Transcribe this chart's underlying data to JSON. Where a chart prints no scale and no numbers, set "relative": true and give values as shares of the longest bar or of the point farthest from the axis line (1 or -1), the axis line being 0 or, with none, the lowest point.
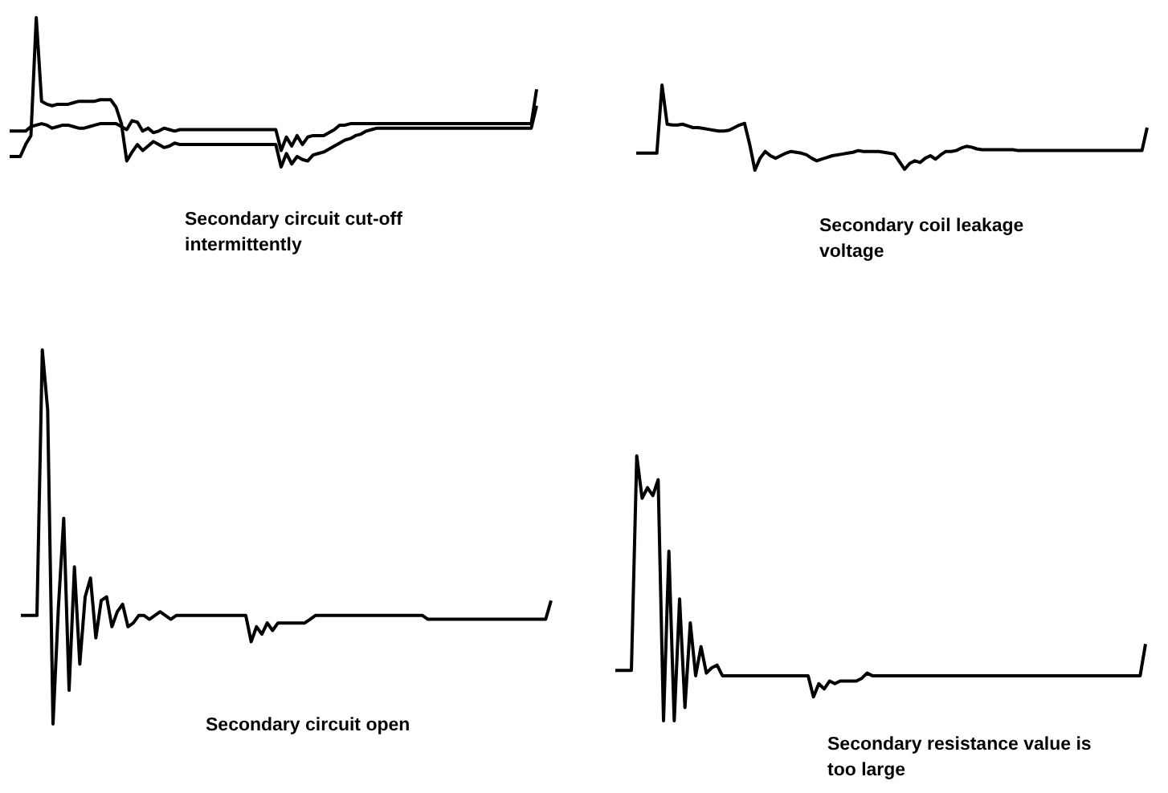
{
  "chart_data": [
    {
      "type": "line",
      "title": "Secondary circuit cut-off intermittently",
      "relative": true,
      "tick_labels": false,
      "categories": [
        null,
        null,
        null,
        null,
        null,
        null,
        null,
        null,
        null,
        null,
        null,
        null,
        null,
        null,
        null,
        null,
        null,
        null,
        null,
        null,
        null,
        null,
        null,
        null,
        null,
        null,
        null,
        null,
        null,
        null,
        null,
        null,
        null,
        null,
        null,
        null,
        null,
        null,
        null,
        null,
        null,
        null,
        null,
        null,
        null,
        null,
        null,
        null,
        null,
        null,
        null,
        null,
        null,
        null,
        null,
        null,
        null,
        null,
        null,
        null,
        null,
        null,
        null,
        null,
        null,
        null,
        null,
        null,
        null,
        null,
        null,
        null,
        null,
        null,
        null,
        null,
        null,
        null,
        null,
        null,
        null,
        null,
        null,
        null,
        null,
        null,
        null,
        null,
        null,
        null,
        null,
        null,
        null,
        null,
        null,
        null,
        null,
        null,
        null,
        null
      ],
      "series": [
        {
          "color": "#000000",
          "values": [
            0.24,
            0.24,
            0.24,
            0.24,
            0.27,
            0.28,
            0.29,
            0.28,
            0.26,
            0.27,
            0.28,
            0.28,
            0.27,
            0.26,
            0.26,
            0.27,
            0.28,
            0.29,
            0.29,
            0.29,
            0.29,
            0.27,
            0.25,
            0.31,
            0.3,
            0.24,
            0.26,
            0.23,
            0.24,
            0.26,
            0.25,
            0.24,
            0.25,
            0.25,
            0.25,
            0.25,
            0.25,
            0.25,
            0.25,
            0.25,
            0.25,
            0.25,
            0.25,
            0.25,
            0.25,
            0.25,
            0.25,
            0.25,
            0.25,
            0.25,
            0.25,
            0.11,
            0.2,
            0.14,
            0.21,
            0.15,
            0.2,
            0.21,
            0.21,
            0.21,
            0.23,
            0.25,
            0.28,
            0.28,
            0.29,
            0.29,
            0.29,
            0.29,
            0.29,
            0.29,
            0.29,
            0.29,
            0.29,
            0.29,
            0.29,
            0.29,
            0.29,
            0.29,
            0.29,
            0.29,
            0.29,
            0.29,
            0.29,
            0.29,
            0.29,
            0.29,
            0.29,
            0.29,
            0.29,
            0.29,
            0.29,
            0.29,
            0.29,
            0.29,
            0.29,
            0.29,
            0.29,
            0.29,
            0.29,
            0.52
          ]
        },
        {
          "color": "#000000",
          "values": [
            0.07,
            0.07,
            0.07,
            0.15,
            0.21,
            1,
            0.44,
            0.42,
            0.41,
            0.42,
            0.42,
            0.42,
            0.43,
            0.44,
            0.44,
            0.44,
            0.44,
            0.45,
            0.45,
            0.45,
            0.4,
            0.29,
            0.04,
            0.1,
            0.15,
            0.11,
            0.14,
            0.17,
            0.15,
            0.13,
            0.14,
            0.16,
            0.15,
            0.15,
            0.15,
            0.15,
            0.15,
            0.15,
            0.15,
            0.15,
            0.15,
            0.15,
            0.15,
            0.15,
            0.15,
            0.15,
            0.15,
            0.15,
            0.15,
            0.15,
            0.15,
            0,
            0.09,
            0.02,
            0.07,
            0.05,
            0.04,
            0.08,
            0.09,
            0.1,
            0.12,
            0.14,
            0.16,
            0.18,
            0.19,
            0.21,
            0.22,
            0.24,
            0.25,
            0.26,
            0.26,
            0.26,
            0.26,
            0.26,
            0.26,
            0.26,
            0.26,
            0.26,
            0.26,
            0.26,
            0.26,
            0.26,
            0.26,
            0.26,
            0.26,
            0.26,
            0.26,
            0.26,
            0.26,
            0.26,
            0.26,
            0.26,
            0.26,
            0.26,
            0.26,
            0.26,
            0.26,
            0.26,
            0.26,
            0.41
          ]
        }
      ]
    },
    {
      "type": "line",
      "title": "Secondary coil leakage voltage",
      "relative": true,
      "tick_labels": false,
      "categories": [
        null,
        null,
        null,
        null,
        null,
        null,
        null,
        null,
        null,
        null,
        null,
        null,
        null,
        null,
        null,
        null,
        null,
        null,
        null,
        null,
        null,
        null,
        null,
        null,
        null,
        null,
        null,
        null,
        null,
        null,
        null,
        null,
        null,
        null,
        null,
        null,
        null,
        null,
        null,
        null,
        null,
        null,
        null,
        null,
        null,
        null,
        null,
        null,
        null,
        null,
        null,
        null,
        null,
        null,
        null,
        null,
        null,
        null,
        null,
        null,
        null,
        null,
        null,
        null,
        null,
        null,
        null,
        null,
        null,
        null,
        null,
        null,
        null,
        null,
        null,
        null,
        null,
        null,
        null,
        null,
        null,
        null,
        null,
        null,
        null,
        null,
        null,
        null,
        null,
        null,
        null,
        null,
        null,
        null,
        null,
        null,
        null,
        null,
        null,
        null
      ],
      "series": [
        {
          "color": "#000000",
          "values": [
            0.2,
            0.2,
            0.2,
            0.2,
            0.2,
            1,
            0.54,
            0.53,
            0.53,
            0.54,
            0.52,
            0.5,
            0.5,
            0.49,
            0.48,
            0.47,
            0.46,
            0.46,
            0.47,
            0.5,
            0.53,
            0.55,
            0.3,
            0,
            0.14,
            0.22,
            0.17,
            0.14,
            0.17,
            0.2,
            0.22,
            0.21,
            0.2,
            0.18,
            0.14,
            0.11,
            0.13,
            0.15,
            0.17,
            0.18,
            0.19,
            0.2,
            0.21,
            0.23,
            0.22,
            0.22,
            0.22,
            0.22,
            0.21,
            0.2,
            0.19,
            0.1,
            0.01,
            0.08,
            0.11,
            0.09,
            0.14,
            0.17,
            0.13,
            0.18,
            0.22,
            0.22,
            0.23,
            0.26,
            0.28,
            0.27,
            0.25,
            0.24,
            0.24,
            0.24,
            0.24,
            0.24,
            0.24,
            0.24,
            0.23,
            0.23,
            0.23,
            0.23,
            0.23,
            0.23,
            0.23,
            0.23,
            0.23,
            0.23,
            0.23,
            0.23,
            0.23,
            0.23,
            0.23,
            0.23,
            0.23,
            0.23,
            0.23,
            0.23,
            0.23,
            0.23,
            0.23,
            0.23,
            0.23,
            0.5
          ]
        }
      ]
    },
    {
      "type": "line",
      "title": "Secondary circuit open",
      "relative": true,
      "tick_labels": false,
      "categories": [
        null,
        null,
        null,
        null,
        null,
        null,
        null,
        null,
        null,
        null,
        null,
        null,
        null,
        null,
        null,
        null,
        null,
        null,
        null,
        null,
        null,
        null,
        null,
        null,
        null,
        null,
        null,
        null,
        null,
        null,
        null,
        null,
        null,
        null,
        null,
        null,
        null,
        null,
        null,
        null,
        null,
        null,
        null,
        null,
        null,
        null,
        null,
        null,
        null,
        null,
        null,
        null,
        null,
        null,
        null,
        null,
        null,
        null,
        null,
        null,
        null,
        null,
        null,
        null,
        null,
        null,
        null,
        null,
        null,
        null,
        null,
        null,
        null,
        null,
        null,
        null,
        null,
        null,
        null,
        null,
        null,
        null,
        null,
        null,
        null,
        null,
        null,
        null,
        null,
        null,
        null,
        null,
        null,
        null,
        null,
        null,
        null,
        null,
        null,
        null
      ],
      "series": [
        {
          "color": "#000000",
          "values": [
            0.29,
            0.29,
            0.29,
            0.29,
            1,
            0.84,
            0,
            0.31,
            0.55,
            0.09,
            0.42,
            0.16,
            0.34,
            0.39,
            0.23,
            0.33,
            0.34,
            0.26,
            0.3,
            0.32,
            0.26,
            0.27,
            0.29,
            0.29,
            0.28,
            0.29,
            0.3,
            0.29,
            0.28,
            0.29,
            0.29,
            0.29,
            0.29,
            0.29,
            0.29,
            0.29,
            0.29,
            0.29,
            0.29,
            0.29,
            0.29,
            0.29,
            0.29,
            0.22,
            0.26,
            0.24,
            0.27,
            0.25,
            0.27,
            0.27,
            0.27,
            0.27,
            0.27,
            0.27,
            0.28,
            0.29,
            0.29,
            0.29,
            0.29,
            0.29,
            0.29,
            0.29,
            0.29,
            0.29,
            0.29,
            0.29,
            0.29,
            0.29,
            0.29,
            0.29,
            0.29,
            0.29,
            0.29,
            0.29,
            0.29,
            0.29,
            0.28,
            0.28,
            0.28,
            0.28,
            0.28,
            0.28,
            0.28,
            0.28,
            0.28,
            0.28,
            0.28,
            0.28,
            0.28,
            0.28,
            0.28,
            0.28,
            0.28,
            0.28,
            0.28,
            0.28,
            0.28,
            0.28,
            0.28,
            0.33
          ]
        }
      ]
    },
    {
      "type": "line",
      "title": "Secondary resistance value is too large",
      "relative": true,
      "tick_labels": false,
      "categories": [
        null,
        null,
        null,
        null,
        null,
        null,
        null,
        null,
        null,
        null,
        null,
        null,
        null,
        null,
        null,
        null,
        null,
        null,
        null,
        null,
        null,
        null,
        null,
        null,
        null,
        null,
        null,
        null,
        null,
        null,
        null,
        null,
        null,
        null,
        null,
        null,
        null,
        null,
        null,
        null,
        null,
        null,
        null,
        null,
        null,
        null,
        null,
        null,
        null,
        null,
        null,
        null,
        null,
        null,
        null,
        null,
        null,
        null,
        null,
        null,
        null,
        null,
        null,
        null,
        null,
        null,
        null,
        null,
        null,
        null,
        null,
        null,
        null,
        null,
        null,
        null,
        null,
        null,
        null,
        null,
        null,
        null,
        null,
        null,
        null,
        null,
        null,
        null,
        null,
        null,
        null,
        null,
        null,
        null,
        null,
        null,
        null,
        null,
        null,
        null
      ],
      "series": [
        {
          "color": "#000000",
          "values": [
            0.19,
            0.19,
            0.19,
            0.19,
            1,
            0.84,
            0.88,
            0.85,
            0.91,
            0,
            0.64,
            0,
            0.46,
            0.05,
            0.37,
            0.17,
            0.28,
            0.18,
            0.2,
            0.21,
            0.17,
            0.17,
            0.17,
            0.17,
            0.17,
            0.17,
            0.17,
            0.17,
            0.17,
            0.17,
            0.17,
            0.17,
            0.17,
            0.17,
            0.17,
            0.17,
            0.17,
            0.09,
            0.14,
            0.12,
            0.15,
            0.14,
            0.15,
            0.15,
            0.15,
            0.15,
            0.16,
            0.18,
            0.17,
            0.17,
            0.17,
            0.17,
            0.17,
            0.17,
            0.17,
            0.17,
            0.17,
            0.17,
            0.17,
            0.17,
            0.17,
            0.17,
            0.17,
            0.17,
            0.17,
            0.17,
            0.17,
            0.17,
            0.17,
            0.17,
            0.17,
            0.17,
            0.17,
            0.17,
            0.17,
            0.17,
            0.17,
            0.17,
            0.17,
            0.17,
            0.17,
            0.17,
            0.17,
            0.17,
            0.17,
            0.17,
            0.17,
            0.17,
            0.17,
            0.17,
            0.17,
            0.17,
            0.17,
            0.17,
            0.17,
            0.17,
            0.17,
            0.17,
            0.17,
            0.29
          ]
        }
      ]
    }
  ]
}
